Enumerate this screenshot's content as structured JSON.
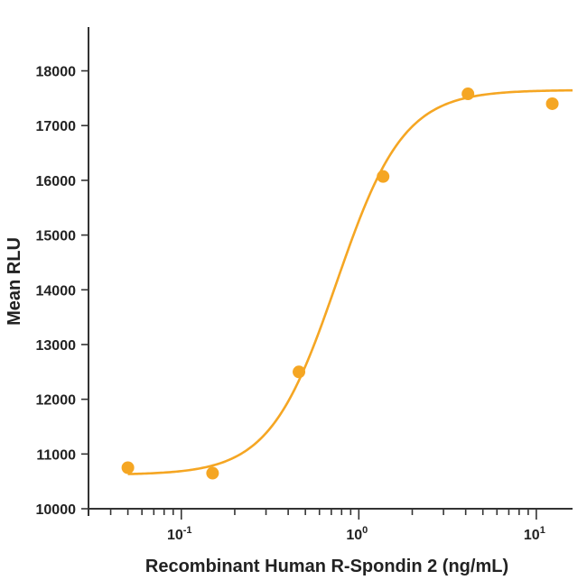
{
  "chart_data": {
    "type": "scatter",
    "xlabel": "Recombinant Human R-Spondin 2 (ng/mL)",
    "ylabel": "Mean RLU",
    "x_scale": "log",
    "xlim": [
      0.03,
      16
    ],
    "ylim": [
      10000,
      18800
    ],
    "yticks": [
      10000,
      11000,
      12000,
      13000,
      14000,
      15000,
      16000,
      17000,
      18000
    ],
    "xticks": [
      {
        "value": 0.1,
        "base": "10",
        "exp": "-1"
      },
      {
        "value": 1,
        "base": "10",
        "exp": "0"
      },
      {
        "value": 10,
        "base": "10",
        "exp": "1"
      }
    ],
    "color": "#f5a623",
    "series": [
      {
        "points": [
          {
            "x": 0.05,
            "y": 10750
          },
          {
            "x": 0.15,
            "y": 10650
          },
          {
            "x": 0.46,
            "y": 12500
          },
          {
            "x": 1.37,
            "y": 16070
          },
          {
            "x": 4.12,
            "y": 17580
          },
          {
            "x": 12.3,
            "y": 17400
          }
        ],
        "fit": {
          "bottom": 10620,
          "top": 17650,
          "ec50": 0.75,
          "hill": 2.3
        }
      }
    ]
  }
}
